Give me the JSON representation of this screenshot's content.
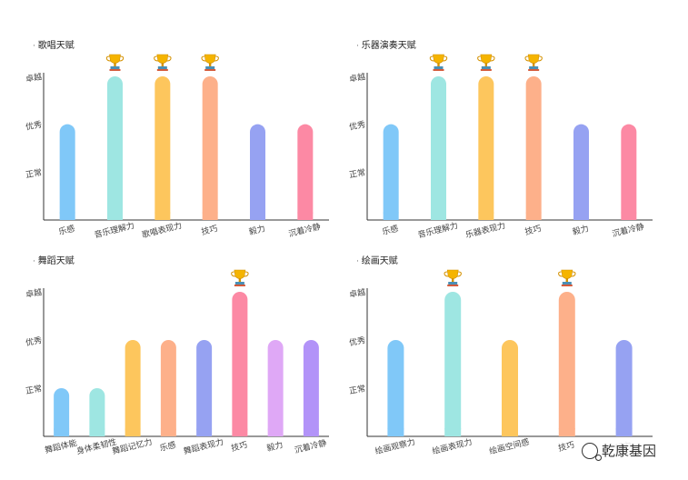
{
  "chart_data": [
    {
      "type": "bar",
      "title": "歌唱天赋",
      "yticks": [
        "正常",
        "优秀",
        "卓越"
      ],
      "ylim": [
        0,
        3
      ],
      "categories": [
        "乐感",
        "音乐理解力",
        "歌唱表现力",
        "技巧",
        "毅力",
        "沉着冷静"
      ],
      "values": [
        2,
        3,
        3,
        3,
        2,
        2
      ],
      "trophy": [
        false,
        true,
        true,
        true,
        false,
        false
      ],
      "colors": [
        "#80c8f8",
        "#9ee6e2",
        "#fdc65d",
        "#fdb08a",
        "#96a2f2",
        "#fc89a4"
      ]
    },
    {
      "type": "bar",
      "title": "乐器演奏天赋",
      "yticks": [
        "正常",
        "优秀",
        "卓越"
      ],
      "ylim": [
        0,
        3
      ],
      "categories": [
        "乐感",
        "音乐理解力",
        "乐器表现力",
        "技巧",
        "毅力",
        "沉着冷静"
      ],
      "values": [
        2,
        3,
        3,
        3,
        2,
        2
      ],
      "trophy": [
        false,
        true,
        true,
        true,
        false,
        false
      ],
      "colors": [
        "#80c8f8",
        "#9ee6e2",
        "#fdc65d",
        "#fdb08a",
        "#96a2f2",
        "#fc89a4"
      ]
    },
    {
      "type": "bar",
      "title": "舞蹈天赋",
      "yticks": [
        "正常",
        "优秀",
        "卓越"
      ],
      "ylim": [
        0,
        3
      ],
      "categories": [
        "舞蹈体能",
        "身体柔韧性",
        "舞蹈记忆力",
        "乐感",
        "舞蹈表现力",
        "技巧",
        "毅力",
        "沉着冷静"
      ],
      "values": [
        1,
        1,
        2,
        2,
        2,
        3,
        2,
        2
      ],
      "trophy": [
        false,
        false,
        false,
        false,
        false,
        true,
        false,
        false
      ],
      "colors": [
        "#80c8f8",
        "#9ee6e2",
        "#fdc65d",
        "#fdb08a",
        "#96a2f2",
        "#fc89a4",
        "#dfa8f6",
        "#b293f8"
      ]
    },
    {
      "type": "bar",
      "title": "绘画天赋",
      "yticks": [
        "正常",
        "优秀",
        "卓越"
      ],
      "ylim": [
        0,
        3
      ],
      "categories": [
        "绘画观察力",
        "绘画表现力",
        "绘画空间感",
        "技巧",
        "毅力"
      ],
      "values": [
        2,
        3,
        2,
        3,
        2
      ],
      "trophy": [
        false,
        true,
        false,
        true,
        false
      ],
      "colors": [
        "#80c8f8",
        "#9ee6e2",
        "#fdc65d",
        "#fdb08a",
        "#96a2f2"
      ]
    }
  ],
  "watermark": "乾康基因",
  "icons": {
    "trophy": "trophy-icon",
    "watermark": "wechat-icon"
  }
}
